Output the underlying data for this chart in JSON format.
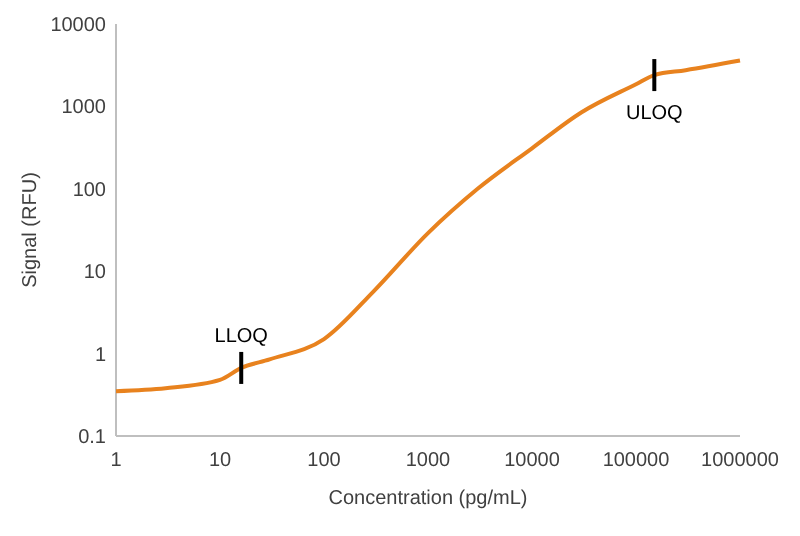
{
  "chart_data": {
    "type": "line",
    "xlabel": "Concentration (pg/mL)",
    "ylabel": "Signal (RFU)",
    "log": "xy",
    "xlim": [
      1,
      1000000
    ],
    "ylim": [
      0.1,
      10000
    ],
    "xticks": [
      1,
      10,
      100,
      1000,
      10000,
      100000,
      1000000
    ],
    "yticks": [
      0.1,
      1,
      10,
      100,
      1000,
      10000
    ],
    "grid": false,
    "marker": "none",
    "line_style": "solid",
    "series": [
      {
        "color": "#e8821e",
        "x": [
          1,
          3,
          10,
          16,
          30,
          100,
          300,
          1000,
          3000,
          10000,
          30000,
          100000,
          150000,
          300000,
          1000000
        ],
        "values": [
          0.35,
          0.38,
          0.48,
          0.67,
          0.85,
          1.5,
          5.7,
          29,
          100,
          310,
          850,
          1860,
          2400,
          2750,
          3600
        ]
      }
    ],
    "annotations": [
      {
        "text": "LLOQ",
        "x": 16,
        "y": 0.67
      },
      {
        "text": "ULOQ",
        "x": 150000,
        "y": 2400
      }
    ]
  }
}
